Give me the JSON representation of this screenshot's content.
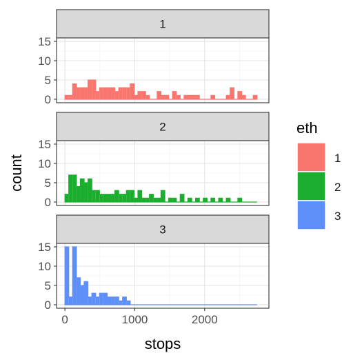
{
  "chart_data": {
    "type": "bar",
    "subtype": "faceted-histogram",
    "xlabel": "stops",
    "ylabel": "count",
    "xlim": [
      -120,
      2920
    ],
    "ylim": [
      -0.9,
      15.9
    ],
    "x_ticks": [
      0,
      1000,
      2000
    ],
    "y_ticks": [
      0,
      5,
      10,
      15
    ],
    "bin_width": 55,
    "legend": {
      "title": "eth",
      "position": "right",
      "entries": [
        "1",
        "2",
        "3"
      ]
    },
    "colors": {
      "1": "#F8766D",
      "2": "#1BAE2E",
      "3": "#5E8FF8"
    },
    "facet_strip_color": "#D9D9D9",
    "grid": true,
    "facets": [
      {
        "label": "1",
        "bins": [
          {
            "x": 0,
            "count": 1
          },
          {
            "x": 55,
            "count": 1
          },
          {
            "x": 110,
            "count": 4
          },
          {
            "x": 165,
            "count": 3
          },
          {
            "x": 220,
            "count": 3
          },
          {
            "x": 275,
            "count": 3
          },
          {
            "x": 330,
            "count": 5
          },
          {
            "x": 385,
            "count": 5
          },
          {
            "x": 440,
            "count": 2
          },
          {
            "x": 495,
            "count": 3
          },
          {
            "x": 550,
            "count": 3
          },
          {
            "x": 605,
            "count": 3
          },
          {
            "x": 660,
            "count": 3
          },
          {
            "x": 715,
            "count": 2
          },
          {
            "x": 770,
            "count": 3
          },
          {
            "x": 825,
            "count": 3
          },
          {
            "x": 880,
            "count": 3
          },
          {
            "x": 935,
            "count": 4
          },
          {
            "x": 990,
            "count": 1
          },
          {
            "x": 1045,
            "count": 2
          },
          {
            "x": 1100,
            "count": 2
          },
          {
            "x": 1155,
            "count": 1
          },
          {
            "x": 1210,
            "count": 0
          },
          {
            "x": 1265,
            "count": 0
          },
          {
            "x": 1320,
            "count": 2
          },
          {
            "x": 1375,
            "count": 1
          },
          {
            "x": 1430,
            "count": 1
          },
          {
            "x": 1485,
            "count": 0
          },
          {
            "x": 1540,
            "count": 2
          },
          {
            "x": 1595,
            "count": 1
          },
          {
            "x": 1650,
            "count": 0
          },
          {
            "x": 1705,
            "count": 1
          },
          {
            "x": 1760,
            "count": 1
          },
          {
            "x": 1815,
            "count": 1
          },
          {
            "x": 1870,
            "count": 1
          },
          {
            "x": 1925,
            "count": 0
          },
          {
            "x": 1980,
            "count": 0
          },
          {
            "x": 2035,
            "count": 0
          },
          {
            "x": 2090,
            "count": 1
          },
          {
            "x": 2145,
            "count": 0
          },
          {
            "x": 2200,
            "count": 0
          },
          {
            "x": 2255,
            "count": 0
          },
          {
            "x": 2310,
            "count": 1
          },
          {
            "x": 2365,
            "count": 3
          },
          {
            "x": 2420,
            "count": 0
          },
          {
            "x": 2475,
            "count": 2
          },
          {
            "x": 2530,
            "count": 1
          },
          {
            "x": 2585,
            "count": 0
          },
          {
            "x": 2640,
            "count": 0
          },
          {
            "x": 2695,
            "count": 1
          }
        ]
      },
      {
        "label": "2",
        "bins": [
          {
            "x": 0,
            "count": 2
          },
          {
            "x": 55,
            "count": 7
          },
          {
            "x": 110,
            "count": 7
          },
          {
            "x": 165,
            "count": 4
          },
          {
            "x": 220,
            "count": 6
          },
          {
            "x": 275,
            "count": 5
          },
          {
            "x": 330,
            "count": 6
          },
          {
            "x": 385,
            "count": 3
          },
          {
            "x": 440,
            "count": 3
          },
          {
            "x": 495,
            "count": 2
          },
          {
            "x": 550,
            "count": 2
          },
          {
            "x": 605,
            "count": 2
          },
          {
            "x": 660,
            "count": 2
          },
          {
            "x": 715,
            "count": 3
          },
          {
            "x": 770,
            "count": 2
          },
          {
            "x": 825,
            "count": 2
          },
          {
            "x": 880,
            "count": 3
          },
          {
            "x": 935,
            "count": 3
          },
          {
            "x": 990,
            "count": 1
          },
          {
            "x": 1045,
            "count": 3
          },
          {
            "x": 1100,
            "count": 1
          },
          {
            "x": 1155,
            "count": 1
          },
          {
            "x": 1210,
            "count": 2
          },
          {
            "x": 1265,
            "count": 1
          },
          {
            "x": 1320,
            "count": 1
          },
          {
            "x": 1375,
            "count": 3
          },
          {
            "x": 1430,
            "count": 0
          },
          {
            "x": 1485,
            "count": 1
          },
          {
            "x": 1540,
            "count": 1
          },
          {
            "x": 1595,
            "count": 0
          },
          {
            "x": 1650,
            "count": 2
          },
          {
            "x": 1705,
            "count": 0
          },
          {
            "x": 1760,
            "count": 1
          },
          {
            "x": 1815,
            "count": 0
          },
          {
            "x": 1870,
            "count": 1
          },
          {
            "x": 1925,
            "count": 0
          },
          {
            "x": 1980,
            "count": 1
          },
          {
            "x": 2035,
            "count": 0
          },
          {
            "x": 2090,
            "count": 1
          },
          {
            "x": 2145,
            "count": 0
          },
          {
            "x": 2200,
            "count": 1
          },
          {
            "x": 2255,
            "count": 0
          },
          {
            "x": 2310,
            "count": 1
          },
          {
            "x": 2365,
            "count": 0
          },
          {
            "x": 2420,
            "count": 0
          },
          {
            "x": 2475,
            "count": 1
          },
          {
            "x": 2530,
            "count": 0
          },
          {
            "x": 2585,
            "count": 0
          },
          {
            "x": 2640,
            "count": 0
          },
          {
            "x": 2695,
            "count": 0
          }
        ]
      },
      {
        "label": "3",
        "bins": [
          {
            "x": 0,
            "count": 15
          },
          {
            "x": 55,
            "count": 2
          },
          {
            "x": 110,
            "count": 15
          },
          {
            "x": 165,
            "count": 7
          },
          {
            "x": 220,
            "count": 5
          },
          {
            "x": 275,
            "count": 6
          },
          {
            "x": 330,
            "count": 2
          },
          {
            "x": 385,
            "count": 3
          },
          {
            "x": 440,
            "count": 2
          },
          {
            "x": 495,
            "count": 3
          },
          {
            "x": 550,
            "count": 3
          },
          {
            "x": 605,
            "count": 2
          },
          {
            "x": 660,
            "count": 2
          },
          {
            "x": 715,
            "count": 2
          },
          {
            "x": 770,
            "count": 1
          },
          {
            "x": 825,
            "count": 2
          },
          {
            "x": 880,
            "count": 1
          },
          {
            "x": 935,
            "count": 0
          },
          {
            "x": 990,
            "count": 0
          },
          {
            "x": 1045,
            "count": 0
          },
          {
            "x": 1100,
            "count": 0
          },
          {
            "x": 1155,
            "count": 0
          },
          {
            "x": 1210,
            "count": 0
          },
          {
            "x": 1265,
            "count": 0
          },
          {
            "x": 1320,
            "count": 0
          },
          {
            "x": 1375,
            "count": 0
          },
          {
            "x": 1430,
            "count": 0
          },
          {
            "x": 1485,
            "count": 0
          },
          {
            "x": 1540,
            "count": 0
          },
          {
            "x": 1595,
            "count": 0
          },
          {
            "x": 1650,
            "count": 0
          },
          {
            "x": 1705,
            "count": 0
          },
          {
            "x": 1760,
            "count": 0
          },
          {
            "x": 1815,
            "count": 0
          },
          {
            "x": 1870,
            "count": 0
          },
          {
            "x": 1925,
            "count": 0
          },
          {
            "x": 1980,
            "count": 0
          },
          {
            "x": 2035,
            "count": 0
          },
          {
            "x": 2090,
            "count": 0
          },
          {
            "x": 2145,
            "count": 0
          },
          {
            "x": 2200,
            "count": 0
          },
          {
            "x": 2255,
            "count": 0
          },
          {
            "x": 2310,
            "count": 0
          },
          {
            "x": 2365,
            "count": 0
          },
          {
            "x": 2420,
            "count": 0
          },
          {
            "x": 2475,
            "count": 0
          },
          {
            "x": 2530,
            "count": 0
          },
          {
            "x": 2585,
            "count": 0
          },
          {
            "x": 2640,
            "count": 0
          },
          {
            "x": 2695,
            "count": 0
          }
        ]
      }
    ]
  }
}
